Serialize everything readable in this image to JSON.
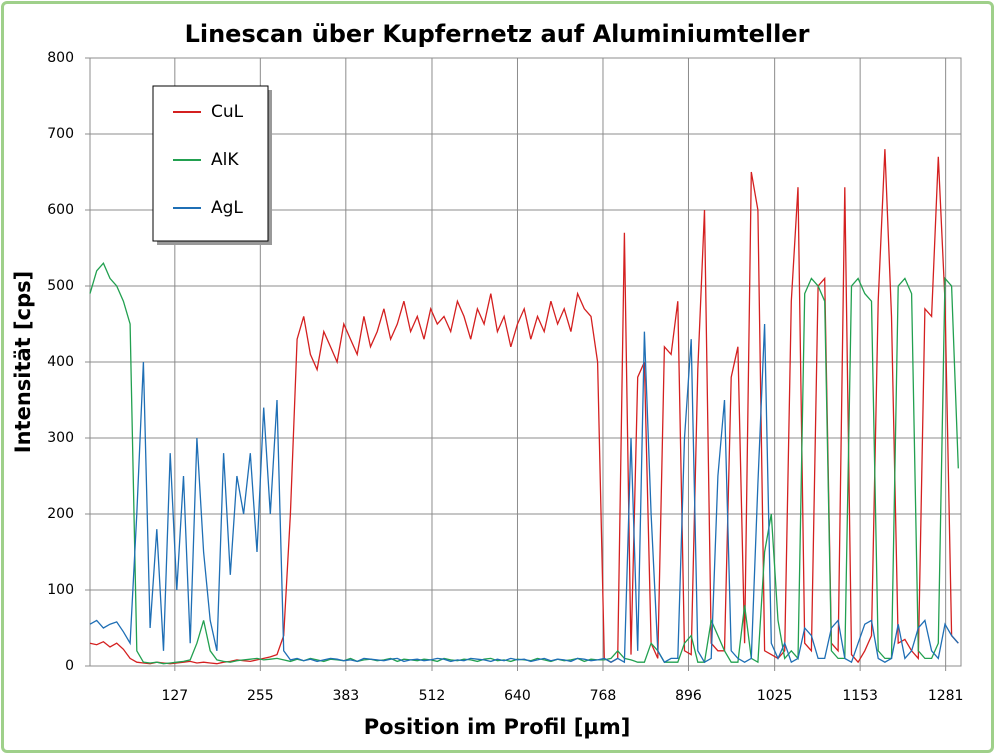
{
  "chart_data": {
    "type": "line",
    "title": "Linescan über Kupfernetz auf Aluminiumteller",
    "x_label": "Position im Profil [µm]",
    "y_label": "Intensität [cps]",
    "xlim": [
      0,
      1304
    ],
    "ylim": [
      0,
      800
    ],
    "xticks": [
      127,
      255,
      383,
      512,
      640,
      768,
      896,
      1025,
      1153,
      1281
    ],
    "yticks": [
      0,
      100,
      200,
      300,
      400,
      500,
      600,
      700,
      800
    ],
    "grid": true,
    "legend": "upper left",
    "x": [
      0,
      10,
      20,
      30,
      40,
      50,
      60,
      70,
      80,
      90,
      100,
      110,
      120,
      130,
      140,
      150,
      160,
      170,
      180,
      190,
      200,
      210,
      220,
      230,
      240,
      250,
      260,
      270,
      280,
      290,
      300,
      310,
      320,
      330,
      340,
      350,
      360,
      370,
      380,
      390,
      400,
      410,
      420,
      430,
      440,
      450,
      460,
      470,
      480,
      490,
      500,
      510,
      520,
      530,
      540,
      550,
      560,
      570,
      580,
      590,
      600,
      610,
      620,
      630,
      640,
      650,
      660,
      670,
      680,
      690,
      700,
      710,
      720,
      730,
      740,
      750,
      760,
      770,
      780,
      790,
      800,
      810,
      820,
      830,
      840,
      850,
      860,
      870,
      880,
      890,
      900,
      910,
      920,
      930,
      940,
      950,
      960,
      970,
      980,
      990,
      1000,
      1010,
      1020,
      1030,
      1040,
      1050,
      1060,
      1070,
      1080,
      1090,
      1100,
      1110,
      1120,
      1130,
      1140,
      1150,
      1160,
      1170,
      1180,
      1190,
      1200,
      1210,
      1220,
      1230,
      1240,
      1250,
      1260,
      1270,
      1280,
      1290,
      1300
    ],
    "series": [
      {
        "name": "CuL",
        "color": "#d42020",
        "values": [
          30,
          28,
          32,
          25,
          30,
          22,
          10,
          5,
          4,
          3,
          5,
          4,
          3,
          4,
          5,
          6,
          4,
          5,
          4,
          3,
          5,
          6,
          8,
          7,
          6,
          8,
          10,
          12,
          15,
          40,
          200,
          430,
          460,
          410,
          390,
          440,
          420,
          400,
          450,
          430,
          410,
          460,
          420,
          440,
          470,
          430,
          450,
          480,
          440,
          460,
          430,
          470,
          450,
          460,
          440,
          480,
          460,
          430,
          470,
          450,
          490,
          440,
          460,
          420,
          450,
          470,
          430,
          460,
          440,
          480,
          450,
          470,
          440,
          490,
          470,
          460,
          400,
          10,
          5,
          10,
          570,
          15,
          380,
          400,
          30,
          10,
          420,
          410,
          480,
          20,
          15,
          390,
          600,
          30,
          20,
          20,
          380,
          420,
          30,
          650,
          600,
          20,
          15,
          10,
          20,
          480,
          630,
          30,
          20,
          500,
          510,
          30,
          20,
          630,
          15,
          5,
          20,
          40,
          480,
          680,
          460,
          30,
          35,
          20,
          10,
          470,
          460,
          670,
          480,
          40,
          30
        ]
      },
      {
        "name": "AlK",
        "color": "#22a050",
        "values": [
          490,
          520,
          530,
          510,
          500,
          480,
          450,
          20,
          5,
          4,
          5,
          3,
          4,
          5,
          6,
          8,
          30,
          60,
          20,
          8,
          6,
          5,
          7,
          8,
          9,
          10,
          8,
          9,
          10,
          8,
          6,
          9,
          7,
          10,
          8,
          6,
          9,
          8,
          7,
          10,
          6,
          8,
          9,
          7,
          8,
          10,
          6,
          9,
          8,
          7,
          9,
          8,
          6,
          10,
          8,
          7,
          9,
          8,
          6,
          9,
          10,
          7,
          8,
          6,
          9,
          8,
          7,
          10,
          8,
          6,
          9,
          7,
          8,
          10,
          6,
          9,
          8,
          8,
          10,
          20,
          10,
          8,
          5,
          5,
          30,
          20,
          5,
          5,
          5,
          30,
          40,
          5,
          5,
          60,
          40,
          20,
          5,
          5,
          80,
          10,
          5,
          150,
          200,
          60,
          10,
          20,
          10,
          490,
          510,
          500,
          480,
          20,
          10,
          10,
          500,
          510,
          490,
          480,
          20,
          10,
          10,
          500,
          510,
          490,
          20,
          10,
          10,
          30,
          510,
          500,
          260
        ]
      },
      {
        "name": "AgL",
        "color": "#1f6fb5",
        "values": [
          55,
          60,
          50,
          55,
          58,
          45,
          30,
          200,
          400,
          50,
          180,
          20,
          280,
          100,
          250,
          30,
          300,
          150,
          60,
          20,
          280,
          120,
          250,
          200,
          280,
          150,
          340,
          200,
          350,
          20,
          8,
          10,
          7,
          9,
          6,
          8,
          10,
          9,
          7,
          8,
          6,
          10,
          9,
          8,
          7,
          9,
          10,
          6,
          8,
          9,
          7,
          8,
          10,
          9,
          6,
          8,
          7,
          10,
          9,
          8,
          6,
          9,
          7,
          10,
          8,
          9,
          6,
          8,
          10,
          7,
          9,
          8,
          6,
          10,
          9,
          7,
          8,
          10,
          5,
          10,
          5,
          300,
          20,
          440,
          200,
          20,
          5,
          10,
          10,
          300,
          430,
          20,
          5,
          10,
          250,
          350,
          20,
          10,
          5,
          10,
          240,
          450,
          30,
          10,
          30,
          5,
          10,
          50,
          40,
          10,
          10,
          50,
          60,
          10,
          5,
          30,
          55,
          60,
          10,
          5,
          10,
          55,
          10,
          20,
          50,
          60,
          20,
          10,
          55,
          40,
          30
        ]
      }
    ]
  }
}
